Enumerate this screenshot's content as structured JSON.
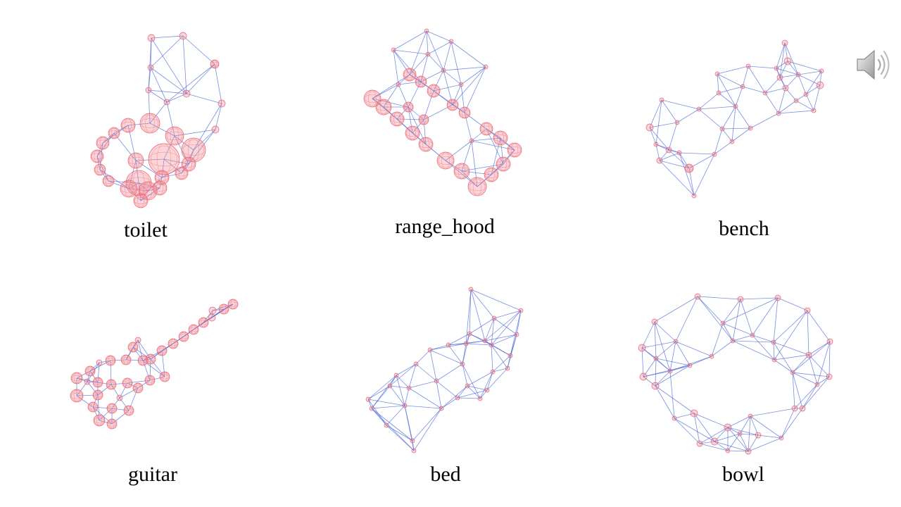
{
  "slide": {
    "items": [
      {
        "label": "toilet"
      },
      {
        "label": "range_hood"
      },
      {
        "label": "bench"
      },
      {
        "label": "guitar"
      },
      {
        "label": "bed"
      },
      {
        "label": "bowl"
      }
    ],
    "icons": {
      "audio": "speaker-icon"
    },
    "colors": {
      "edge": "#3d5fd9",
      "node": "#f4868e"
    }
  }
}
